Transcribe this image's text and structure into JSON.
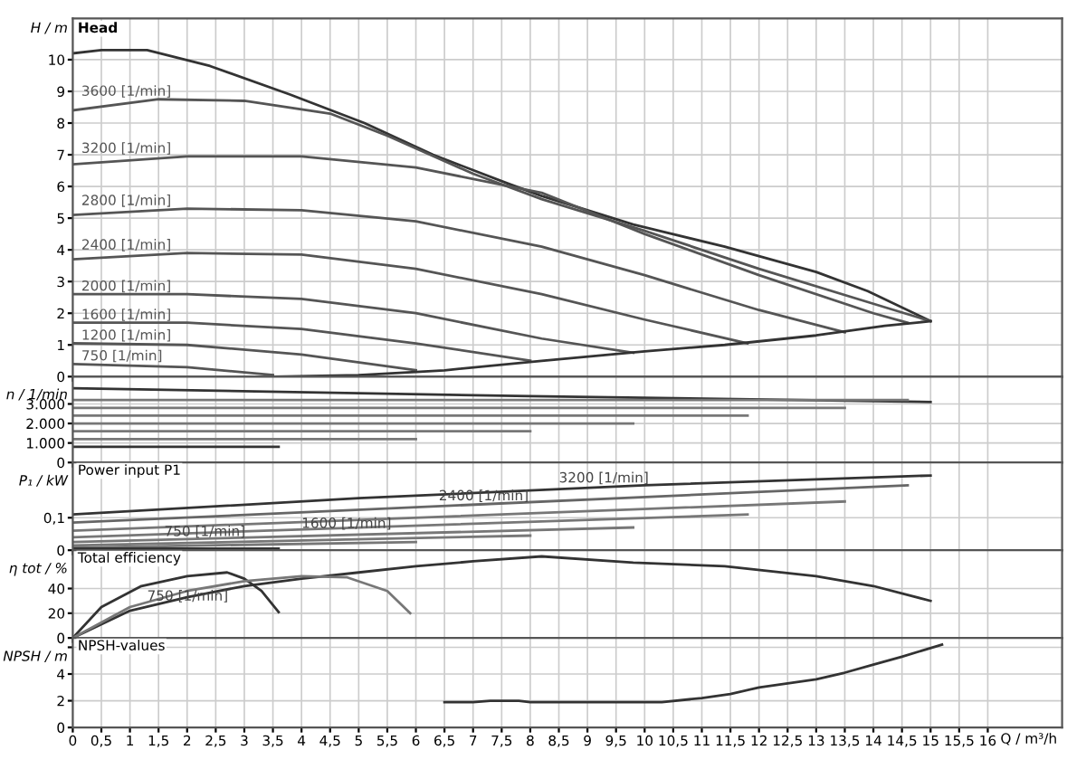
{
  "chart_data": [
    {
      "type": "line",
      "title": "Head",
      "ylabel": "H / m",
      "xlim": [
        0,
        17.3
      ],
      "ylim": [
        0,
        11.3
      ],
      "yticks": [
        0,
        1,
        2,
        3,
        4,
        5,
        6,
        7,
        8,
        9,
        10
      ],
      "xticks": [
        0,
        0.5,
        1,
        1.5,
        2,
        2.5,
        3,
        3.5,
        4,
        4.5,
        5,
        5.5,
        6,
        6.5,
        7,
        7.5,
        8,
        8.5,
        9,
        9.5,
        10,
        10.5,
        11,
        11.5,
        12,
        12.5,
        13,
        13.5,
        14,
        14.5,
        15,
        15.5,
        16
      ],
      "tick_labels": "y",
      "grid": true,
      "legend": false,
      "series": [
        {
          "color": "#333333",
          "x": [
            0,
            0.5,
            1.3,
            2.4,
            3.8,
            5.1,
            6.3,
            7.6,
            8.2,
            9.8,
            11.4,
            13,
            13.9,
            15
          ],
          "values": [
            10.2,
            10.3,
            10.3,
            9.8,
            8.9,
            8.0,
            7.0,
            6.1,
            5.7,
            4.8,
            4.1,
            3.3,
            2.7,
            1.75
          ]
        },
        {
          "name": "3600 [1/min]",
          "color": "#555555",
          "x": [
            0,
            1.5,
            3,
            4.5,
            5.5,
            7,
            8.2,
            10,
            12,
            14,
            15
          ],
          "values": [
            8.4,
            8.75,
            8.7,
            8.3,
            7.6,
            6.4,
            5.6,
            4.6,
            3.4,
            2.3,
            1.75
          ]
        },
        {
          "name": "3200 [1/min]",
          "color": "#555555",
          "x": [
            0,
            2,
            4,
            6,
            8.2,
            10,
            12,
            14,
            14.6
          ],
          "values": [
            6.7,
            6.95,
            6.95,
            6.6,
            5.8,
            4.5,
            3.2,
            2.0,
            1.7
          ]
        },
        {
          "name": "2800 [1/min]",
          "color": "#555555",
          "x": [
            0,
            2,
            4,
            6,
            8.2,
            10,
            12,
            13.5
          ],
          "values": [
            5.1,
            5.3,
            5.25,
            4.9,
            4.1,
            3.2,
            2.1,
            1.4
          ]
        },
        {
          "name": "2400 [1/min]",
          "color": "#555555",
          "x": [
            0,
            2,
            4,
            6,
            8.2,
            10,
            11.8
          ],
          "values": [
            3.7,
            3.9,
            3.85,
            3.4,
            2.6,
            1.8,
            1.05
          ]
        },
        {
          "name": "2000 [1/min]",
          "color": "#555555",
          "x": [
            0,
            2,
            4,
            6,
            8.2,
            9.8
          ],
          "values": [
            2.6,
            2.6,
            2.45,
            2.0,
            1.2,
            0.75
          ]
        },
        {
          "name": "1600 [1/min]",
          "color": "#555555",
          "x": [
            0,
            2,
            4,
            6,
            8
          ],
          "values": [
            1.7,
            1.7,
            1.5,
            1.05,
            0.5
          ]
        },
        {
          "name": "1200 [1/min]",
          "color": "#555555",
          "x": [
            0,
            2,
            4,
            6
          ],
          "values": [
            1.05,
            1.0,
            0.7,
            0.2
          ]
        },
        {
          "name": "750 [1/min]",
          "color": "#555555",
          "x": [
            0,
            2,
            3.5
          ],
          "values": [
            0.4,
            0.3,
            0.05
          ]
        },
        {
          "color": "#333333",
          "x": [
            3.5,
            5,
            6.5,
            8.2,
            10,
            11.4,
            13,
            14.2,
            15
          ],
          "values": [
            0.0,
            0.05,
            0.2,
            0.5,
            0.8,
            1.0,
            1.3,
            1.6,
            1.75
          ]
        }
      ]
    },
    {
      "type": "line",
      "ylabel": "n / 1/min",
      "xlim": [
        0,
        17.3
      ],
      "ylim": [
        0,
        4400
      ],
      "yticks": [
        0,
        {
          "value": 1000,
          "label": "1.000"
        },
        {
          "value": 2000,
          "label": "2.000"
        },
        {
          "value": 3000,
          "label": "3.000"
        }
      ],
      "xticks": [
        0,
        0.5,
        1,
        1.5,
        2,
        2.5,
        3,
        3.5,
        4,
        4.5,
        5,
        5.5,
        6,
        6.5,
        7,
        7.5,
        8,
        8.5,
        9,
        9.5,
        10,
        10.5,
        11,
        11.5,
        12,
        12.5,
        13,
        13.5,
        14,
        14.5,
        15,
        15.5,
        16
      ],
      "tick_labels": "y",
      "grid": true,
      "legend": false,
      "series": [
        {
          "color": "#333333",
          "x": [
            0,
            8,
            15
          ],
          "values": [
            3800,
            3400,
            3100
          ]
        },
        {
          "color": "#777777",
          "x": [
            0,
            14.6
          ],
          "values": [
            3200,
            3200
          ]
        },
        {
          "color": "#777777",
          "x": [
            0,
            13.5
          ],
          "values": [
            2800,
            2800
          ]
        },
        {
          "color": "#777777",
          "x": [
            0,
            11.8
          ],
          "values": [
            2400,
            2400
          ]
        },
        {
          "color": "#777777",
          "x": [
            0,
            9.8
          ],
          "values": [
            2000,
            2000
          ]
        },
        {
          "color": "#777777",
          "x": [
            0,
            8
          ],
          "values": [
            1600,
            1600
          ]
        },
        {
          "color": "#777777",
          "x": [
            0,
            6
          ],
          "values": [
            1200,
            1200
          ]
        },
        {
          "color": "#333333",
          "x": [
            0,
            3.6
          ],
          "values": [
            800,
            800
          ]
        }
      ]
    },
    {
      "type": "line",
      "title": "Power input P1",
      "ylabel": "P₁ / kW",
      "xlim": [
        0,
        17.3
      ],
      "ylim": [
        0,
        0.27
      ],
      "yticks": [
        0,
        {
          "value": 0.1,
          "label": "0,1"
        }
      ],
      "xticks": [
        0,
        0.5,
        1,
        1.5,
        2,
        2.5,
        3,
        3.5,
        4,
        4.5,
        5,
        5.5,
        6,
        6.5,
        7,
        7.5,
        8,
        8.5,
        9,
        9.5,
        10,
        10.5,
        11,
        11.5,
        12,
        12.5,
        13,
        13.5,
        14,
        14.5,
        15,
        15.5,
        16
      ],
      "tick_labels": "y",
      "grid": true,
      "legend": false,
      "annotations": [
        {
          "text": "3200 [1/min]",
          "x": 8.5,
          "y": 0.2
        },
        {
          "text": "2400 [1/min]",
          "x": 6.4,
          "y": 0.145
        },
        {
          "text": "1600 [1/min]",
          "x": 4.0,
          "y": 0.06
        },
        {
          "text": "750 [1/min]",
          "x": 1.6,
          "y": 0.035
        }
      ],
      "series": [
        {
          "color": "#333333",
          "x": [
            0,
            5,
            10,
            15
          ],
          "values": [
            0.11,
            0.16,
            0.2,
            0.23
          ]
        },
        {
          "color": "#666666",
          "x": [
            0,
            14.6
          ],
          "values": [
            0.085,
            0.2
          ]
        },
        {
          "color": "#777777",
          "x": [
            0,
            13.5
          ],
          "values": [
            0.06,
            0.15
          ]
        },
        {
          "color": "#777777",
          "x": [
            0,
            11.8
          ],
          "values": [
            0.04,
            0.11
          ]
        },
        {
          "color": "#777777",
          "x": [
            0,
            9.8
          ],
          "values": [
            0.025,
            0.07
          ]
        },
        {
          "color": "#777777",
          "x": [
            0,
            8
          ],
          "values": [
            0.015,
            0.045
          ]
        },
        {
          "color": "#777777",
          "x": [
            0,
            6
          ],
          "values": [
            0.008,
            0.025
          ]
        },
        {
          "color": "#333333",
          "x": [
            0,
            3.6
          ],
          "values": [
            0.005,
            0.005
          ]
        }
      ]
    },
    {
      "type": "line",
      "title": "Total efficiency",
      "ylabel": "η tot / %",
      "xlim": [
        0,
        17.3
      ],
      "ylim": [
        0,
        71
      ],
      "yticks": [
        0,
        20,
        40
      ],
      "xticks": [
        0,
        0.5,
        1,
        1.5,
        2,
        2.5,
        3,
        3.5,
        4,
        4.5,
        5,
        5.5,
        6,
        6.5,
        7,
        7.5,
        8,
        8.5,
        9,
        9.5,
        10,
        10.5,
        11,
        11.5,
        12,
        12.5,
        13,
        13.5,
        14,
        14.5,
        15,
        15.5,
        16
      ],
      "tick_labels": "y",
      "grid": true,
      "legend": false,
      "annotations": [
        {
          "text": "750 [1/min]",
          "x": 1.3,
          "y": 28
        }
      ],
      "series": [
        {
          "color": "#333333",
          "x": [
            0,
            1,
            2,
            3,
            4,
            5,
            6,
            7,
            8.2,
            9.8,
            11.4,
            13,
            14,
            15
          ],
          "values": [
            0,
            22,
            33,
            42,
            48,
            53,
            58,
            62,
            66,
            61,
            58,
            50,
            42,
            30
          ]
        },
        {
          "color": "#333333",
          "x": [
            0,
            0.5,
            1.2,
            2,
            2.7,
            3,
            3.3,
            3.6
          ],
          "values": [
            0,
            25,
            42,
            50,
            53,
            48,
            38,
            21
          ]
        },
        {
          "color": "#777777",
          "x": [
            0,
            1,
            2,
            3,
            4,
            4.8,
            5.5,
            5.9
          ],
          "values": [
            0,
            25,
            38,
            46,
            50,
            49,
            38,
            20
          ]
        }
      ]
    },
    {
      "type": "line",
      "title": "NPSH-values",
      "ylabel": "NPSH / m",
      "xlabel": "Q / m³/h",
      "xlim": [
        0,
        17.3
      ],
      "ylim": [
        0,
        6.7
      ],
      "yticks": [
        0,
        2,
        4,
        {
          "value": 6,
          "label": null
        }
      ],
      "xticks": [
        0,
        {
          "value": 0.5,
          "label": "0,5"
        },
        1,
        {
          "value": 1.5,
          "label": "1,5"
        },
        2,
        {
          "value": 2.5,
          "label": "2,5"
        },
        3,
        {
          "value": 3.5,
          "label": "3,5"
        },
        4,
        {
          "value": 4.5,
          "label": "4,5"
        },
        5,
        {
          "value": 5.5,
          "label": "5,5"
        },
        6,
        {
          "value": 6.5,
          "label": "6,5"
        },
        7,
        {
          "value": 7.5,
          "label": "7,5"
        },
        8,
        {
          "value": 8.5,
          "label": "8,5"
        },
        9,
        {
          "value": 9.5,
          "label": "9,5"
        },
        10,
        {
          "value": 10.5,
          "label": "10,5"
        },
        11,
        {
          "value": 11.5,
          "label": "11,5"
        },
        12,
        {
          "value": 12.5,
          "label": "12,5"
        },
        13,
        {
          "value": 13.5,
          "label": "13,5"
        },
        14,
        {
          "value": 14.5,
          "label": "14,5"
        },
        15,
        {
          "value": 15.5,
          "label": "15,5"
        },
        16
      ],
      "grid": true,
      "legend": false,
      "series": [
        {
          "color": "#333333",
          "x": [
            6.5,
            7,
            7.3,
            7.8,
            8,
            10.3,
            11,
            11.5,
            12,
            12.5,
            13,
            13.5,
            14,
            14.5,
            15.2
          ],
          "values": [
            1.9,
            1.9,
            2.0,
            2.0,
            1.9,
            1.9,
            2.2,
            2.5,
            3.0,
            3.3,
            3.6,
            4.1,
            4.7,
            5.3,
            6.2
          ]
        }
      ]
    }
  ]
}
